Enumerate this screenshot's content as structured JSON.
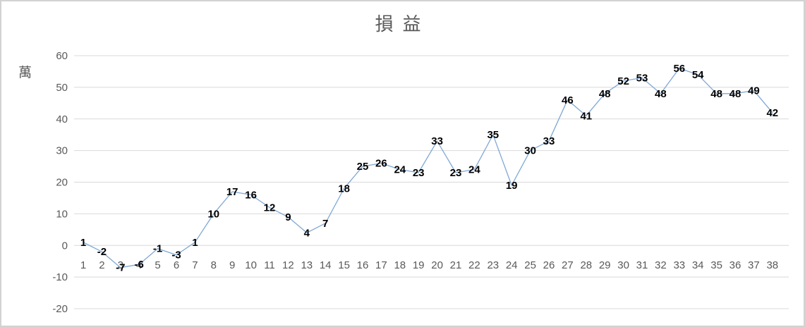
{
  "chart_data": {
    "type": "line",
    "title": "損益",
    "ylabel": "萬",
    "xlabel": "",
    "categories": [
      1,
      2,
      3,
      4,
      5,
      6,
      7,
      8,
      9,
      10,
      11,
      12,
      13,
      14,
      15,
      16,
      17,
      18,
      19,
      20,
      21,
      22,
      23,
      24,
      25,
      26,
      27,
      28,
      29,
      30,
      31,
      32,
      33,
      34,
      35,
      36,
      37,
      38
    ],
    "values": [
      1,
      -2,
      -7,
      -6,
      -1,
      -3,
      1,
      10,
      17,
      16,
      12,
      9,
      4,
      7,
      18,
      25,
      26,
      24,
      23,
      33,
      23,
      24,
      35,
      19,
      30,
      33,
      46,
      41,
      48,
      52,
      53,
      48,
      56,
      54,
      48,
      48,
      49,
      42
    ],
    "y_ticks": [
      60,
      50,
      40,
      30,
      20,
      10,
      0,
      -10,
      -20
    ],
    "ylim": [
      -20,
      60
    ],
    "grid": true,
    "legend": "none",
    "data_labels": "center",
    "colors": {
      "line": "#7fa8d5",
      "grid": "#d9d9d9",
      "axis_text": "#595959",
      "title_text": "#595959",
      "data_label": "#000000",
      "frame_border": "#d2d2d2",
      "background": "#ffffff"
    }
  }
}
